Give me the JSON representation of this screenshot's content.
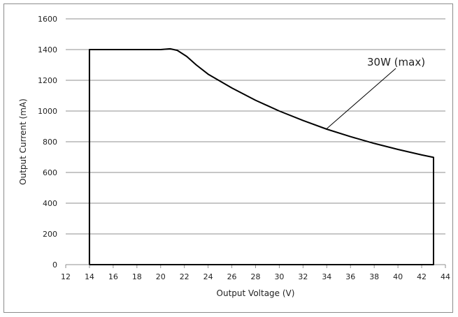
{
  "chart_data": {
    "type": "line",
    "xlabel": "Output Voltage (V)",
    "ylabel": "Output Current (mA)",
    "xlim": [
      12,
      44
    ],
    "ylim": [
      0,
      1600
    ],
    "x_ticks": [
      "12",
      "14",
      "16",
      "18",
      "20",
      "22",
      "24",
      "26",
      "28",
      "30",
      "32",
      "34",
      "36",
      "38",
      "40",
      "42",
      "44"
    ],
    "y_ticks": [
      "0",
      "200",
      "400",
      "600",
      "800",
      "1000",
      "1200",
      "1400",
      "1600"
    ],
    "grid": "horizontal",
    "series": [
      {
        "x": [
          14,
          14,
          20,
          20.8,
          21.4,
          22.2,
          23,
          24,
          26,
          28,
          30,
          32,
          34,
          36,
          38,
          40,
          42,
          43,
          43,
          14
        ],
        "y": [
          0,
          1400,
          1400,
          1405,
          1395,
          1355,
          1300,
          1240,
          1150,
          1070,
          1000,
          938,
          882,
          833,
          789,
          750,
          714,
          698,
          0,
          0
        ]
      }
    ],
    "annotations": [
      {
        "text": "30W (max)",
        "points_to": {
          "x": 34,
          "y": 885
        }
      }
    ]
  }
}
